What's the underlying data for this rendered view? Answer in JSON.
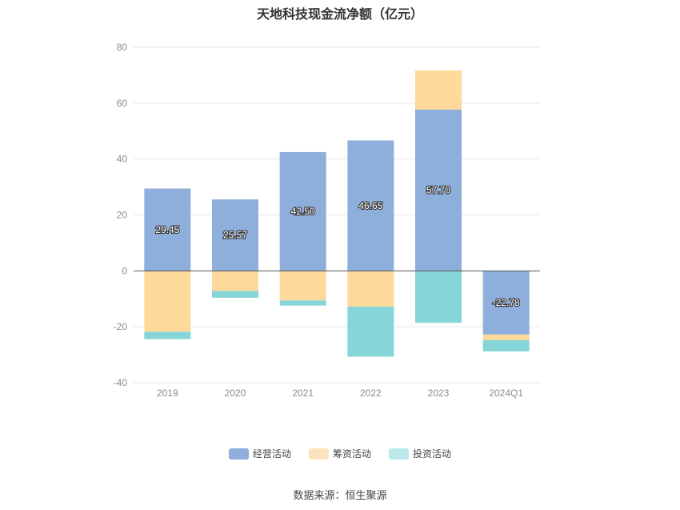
{
  "chart_data": {
    "type": "bar",
    "stacked": true,
    "title": "天地科技现金流净额（亿元）",
    "categories": [
      "2019",
      "2020",
      "2021",
      "2022",
      "2023",
      "2024Q1"
    ],
    "series": [
      {
        "name": "经营活动",
        "color": "#8eaedc",
        "values": [
          29.45,
          25.57,
          42.5,
          46.65,
          57.7,
          -22.78
        ],
        "labels": [
          "29.45",
          "25.57",
          "42.50",
          "46.65",
          "57.70",
          "-22.78"
        ]
      },
      {
        "name": "筹资活动",
        "color": "#fdd99c",
        "values": [
          -21.8,
          -7.2,
          -10.6,
          -12.8,
          14.0,
          -2.0
        ]
      },
      {
        "name": "投资活动",
        "color": "#86d5d8",
        "values": [
          -2.6,
          -2.4,
          -1.8,
          -17.9,
          -18.6,
          -4.0
        ]
      }
    ],
    "ylim": [
      -40,
      80
    ],
    "yticks": [
      -40,
      -20,
      0,
      20,
      40,
      60,
      80
    ],
    "legend_position": "bottom",
    "legend_colors": [
      "#8eaedc",
      "#fde3bd",
      "#bde9ea"
    ],
    "grid": true
  },
  "source": "数据来源：恒生聚源"
}
